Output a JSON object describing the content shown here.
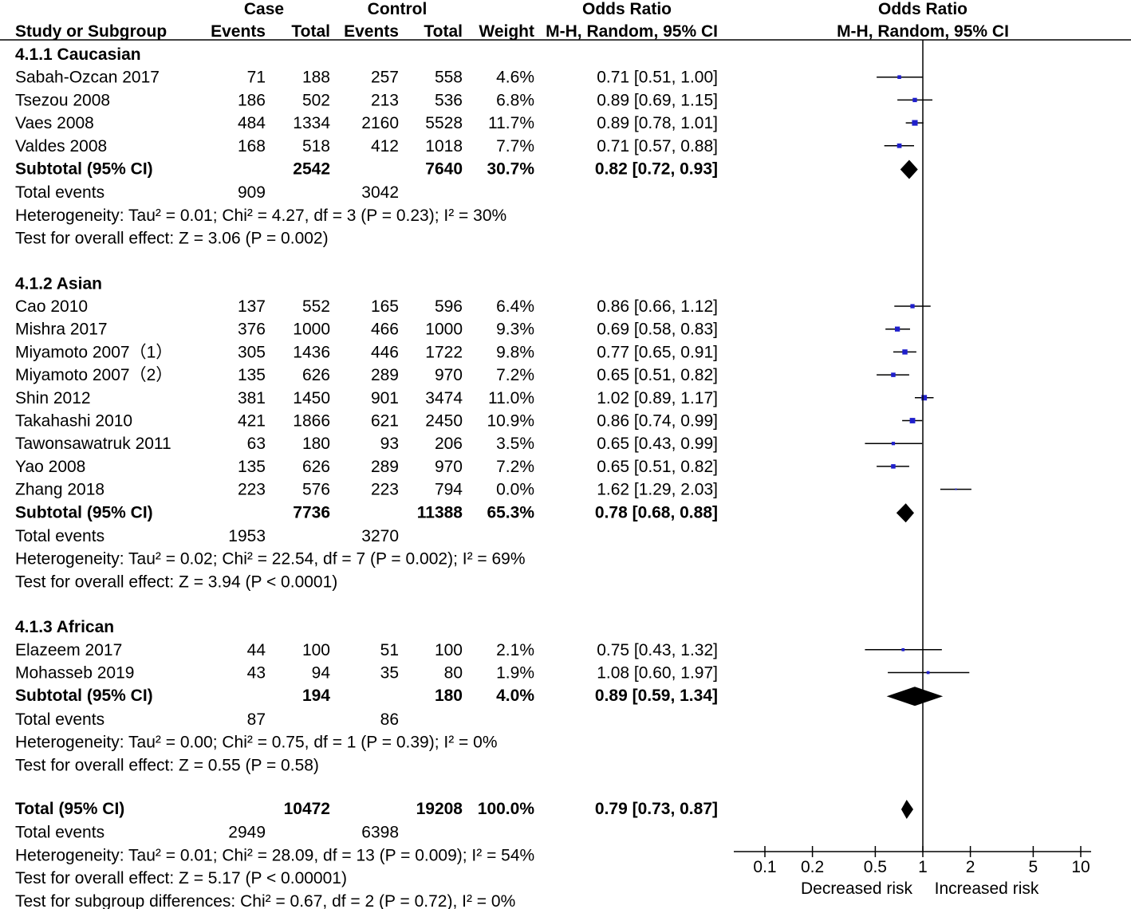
{
  "header": {
    "case_label": "Case",
    "control_label": "Control",
    "or_label": "Odds Ratio",
    "plot_label": "Odds Ratio",
    "study_col": "Study or Subgroup",
    "events_col": "Events",
    "total_col": "Total",
    "events_col2": "Events",
    "total_col2": "Total",
    "weight_col": "Weight",
    "method_col": "M-H, Random, 95% CI",
    "method_col_plot": "M-H, Random, 95% CI"
  },
  "chart_data": {
    "type": "forest",
    "xscale": "log",
    "xlim": [
      0.1,
      10
    ],
    "ticks": [
      "0.1",
      "0.2",
      "0.5",
      "1",
      "2",
      "5",
      "10"
    ],
    "tick_values": [
      0.1,
      0.2,
      0.5,
      1,
      2,
      5,
      10
    ],
    "xlabel_left": "Decreased risk",
    "xlabel_right": "Increased risk",
    "colors": {
      "study_marker": "#1f1fcc",
      "diamond": "#000000",
      "line": "#000000"
    },
    "groups": [
      {
        "title": "4.1.1 Caucasian",
        "studies": [
          {
            "name": "Sabah-Ozcan 2017",
            "case_events": "71",
            "case_total": "188",
            "ctrl_events": "257",
            "ctrl_total": "558",
            "weight": "4.6%",
            "ci_text": "0.71 [0.51, 1.00]",
            "or": 0.71,
            "lo": 0.51,
            "hi": 1.0
          },
          {
            "name": "Tsezou 2008",
            "case_events": "186",
            "case_total": "502",
            "ctrl_events": "213",
            "ctrl_total": "536",
            "weight": "6.8%",
            "ci_text": "0.89 [0.69, 1.15]",
            "or": 0.89,
            "lo": 0.69,
            "hi": 1.15
          },
          {
            "name": "Vaes 2008",
            "case_events": "484",
            "case_total": "1334",
            "ctrl_events": "2160",
            "ctrl_total": "5528",
            "weight": "11.7%",
            "ci_text": "0.89 [0.78, 1.01]",
            "or": 0.89,
            "lo": 0.78,
            "hi": 1.01
          },
          {
            "name": "Valdes 2008",
            "case_events": "168",
            "case_total": "518",
            "ctrl_events": "412",
            "ctrl_total": "1018",
            "weight": "7.7%",
            "ci_text": "0.71 [0.57, 0.88]",
            "or": 0.71,
            "lo": 0.57,
            "hi": 0.88
          }
        ],
        "subtotal": {
          "label": "Subtotal (95% CI)",
          "case_total": "2542",
          "ctrl_total": "7640",
          "weight": "30.7%",
          "ci_text": "0.82 [0.72, 0.93]",
          "or": 0.82,
          "lo": 0.72,
          "hi": 0.93
        },
        "total_events": {
          "label": "Total events",
          "case": "909",
          "ctrl": "3042"
        },
        "heterogeneity": "Heterogeneity: Tau² = 0.01; Chi² = 4.27, df = 3 (P = 0.23); I² = 30%",
        "overall": "Test for overall effect: Z = 3.06 (P = 0.002)"
      },
      {
        "title": "4.1.2 Asian",
        "studies": [
          {
            "name": "Cao 2010",
            "case_events": "137",
            "case_total": "552",
            "ctrl_events": "165",
            "ctrl_total": "596",
            "weight": "6.4%",
            "ci_text": "0.86 [0.66, 1.12]",
            "or": 0.86,
            "lo": 0.66,
            "hi": 1.12
          },
          {
            "name": "Mishra 2017",
            "case_events": "376",
            "case_total": "1000",
            "ctrl_events": "466",
            "ctrl_total": "1000",
            "weight": "9.3%",
            "ci_text": "0.69 [0.58, 0.83]",
            "or": 0.69,
            "lo": 0.58,
            "hi": 0.83
          },
          {
            "name": "Miyamoto 2007（1）",
            "case_events": "305",
            "case_total": "1436",
            "ctrl_events": "446",
            "ctrl_total": "1722",
            "weight": "9.8%",
            "ci_text": "0.77 [0.65, 0.91]",
            "or": 0.77,
            "lo": 0.65,
            "hi": 0.91
          },
          {
            "name": "Miyamoto 2007（2）",
            "case_events": "135",
            "case_total": "626",
            "ctrl_events": "289",
            "ctrl_total": "970",
            "weight": "7.2%",
            "ci_text": "0.65 [0.51, 0.82]",
            "or": 0.65,
            "lo": 0.51,
            "hi": 0.82
          },
          {
            "name": "Shin 2012",
            "case_events": "381",
            "case_total": "1450",
            "ctrl_events": "901",
            "ctrl_total": "3474",
            "weight": "11.0%",
            "ci_text": "1.02 [0.89, 1.17]",
            "or": 1.02,
            "lo": 0.89,
            "hi": 1.17
          },
          {
            "name": "Takahashi 2010",
            "case_events": "421",
            "case_total": "1866",
            "ctrl_events": "621",
            "ctrl_total": "2450",
            "weight": "10.9%",
            "ci_text": "0.86 [0.74, 0.99]",
            "or": 0.86,
            "lo": 0.74,
            "hi": 0.99
          },
          {
            "name": "Tawonsawatruk 2011",
            "case_events": "63",
            "case_total": "180",
            "ctrl_events": "93",
            "ctrl_total": "206",
            "weight": "3.5%",
            "ci_text": "0.65 [0.43, 0.99]",
            "or": 0.65,
            "lo": 0.43,
            "hi": 0.99
          },
          {
            "name": "Yao 2008",
            "case_events": "135",
            "case_total": "626",
            "ctrl_events": "289",
            "ctrl_total": "970",
            "weight": "7.2%",
            "ci_text": "0.65 [0.51, 0.82]",
            "or": 0.65,
            "lo": 0.51,
            "hi": 0.82
          },
          {
            "name": "Zhang 2018",
            "case_events": "223",
            "case_total": "576",
            "ctrl_events": "223",
            "ctrl_total": "794",
            "weight": "0.0%",
            "ci_text": "1.62 [1.29, 2.03]",
            "or": 1.62,
            "lo": 1.29,
            "hi": 2.03
          }
        ],
        "subtotal": {
          "label": "Subtotal (95% CI)",
          "case_total": "7736",
          "ctrl_total": "11388",
          "weight": "65.3%",
          "ci_text": "0.78 [0.68, 0.88]",
          "or": 0.78,
          "lo": 0.68,
          "hi": 0.88
        },
        "total_events": {
          "label": "Total events",
          "case": "1953",
          "ctrl": "3270"
        },
        "heterogeneity": "Heterogeneity: Tau² = 0.02; Chi² = 22.54, df = 7 (P = 0.002); I² = 69%",
        "overall": "Test for overall effect: Z = 3.94 (P < 0.0001)"
      },
      {
        "title": "4.1.3 African",
        "studies": [
          {
            "name": "Elazeem 2017",
            "case_events": "44",
            "case_total": "100",
            "ctrl_events": "51",
            "ctrl_total": "100",
            "weight": "2.1%",
            "ci_text": "0.75 [0.43, 1.32]",
            "or": 0.75,
            "lo": 0.43,
            "hi": 1.32
          },
          {
            "name": "Mohasseb 2019",
            "case_events": "43",
            "case_total": "94",
            "ctrl_events": "35",
            "ctrl_total": "80",
            "weight": "1.9%",
            "ci_text": "1.08 [0.60, 1.97]",
            "or": 1.08,
            "lo": 0.6,
            "hi": 1.97
          }
        ],
        "subtotal": {
          "label": "Subtotal (95% CI)",
          "case_total": "194",
          "ctrl_total": "180",
          "weight": "4.0%",
          "ci_text": "0.89 [0.59, 1.34]",
          "or": 0.89,
          "lo": 0.59,
          "hi": 1.34
        },
        "total_events": {
          "label": "Total events",
          "case": "87",
          "ctrl": "86"
        },
        "heterogeneity": "Heterogeneity: Tau² = 0.00; Chi² = 0.75, df = 1 (P = 0.39); I² = 0%",
        "overall": "Test for overall effect: Z = 0.55 (P = 0.58)"
      }
    ],
    "overall": {
      "label": "Total (95% CI)",
      "case_total": "10472",
      "ctrl_total": "19208",
      "weight": "100.0%",
      "ci_text": "0.79 [0.73, 0.87]",
      "or": 0.79,
      "lo": 0.73,
      "hi": 0.87,
      "total_events": {
        "label": "Total events",
        "case": "2949",
        "ctrl": "6398"
      },
      "heterogeneity": "Heterogeneity: Tau² = 0.01; Chi² = 28.09, df = 13 (P = 0.009); I² = 54%",
      "overall_effect": "Test for overall effect: Z = 5.17 (P < 0.00001)",
      "subgroup_diff": "Test for subgroup differences: Chi² = 0.67, df = 2 (P = 0.72), I² = 0%"
    }
  }
}
